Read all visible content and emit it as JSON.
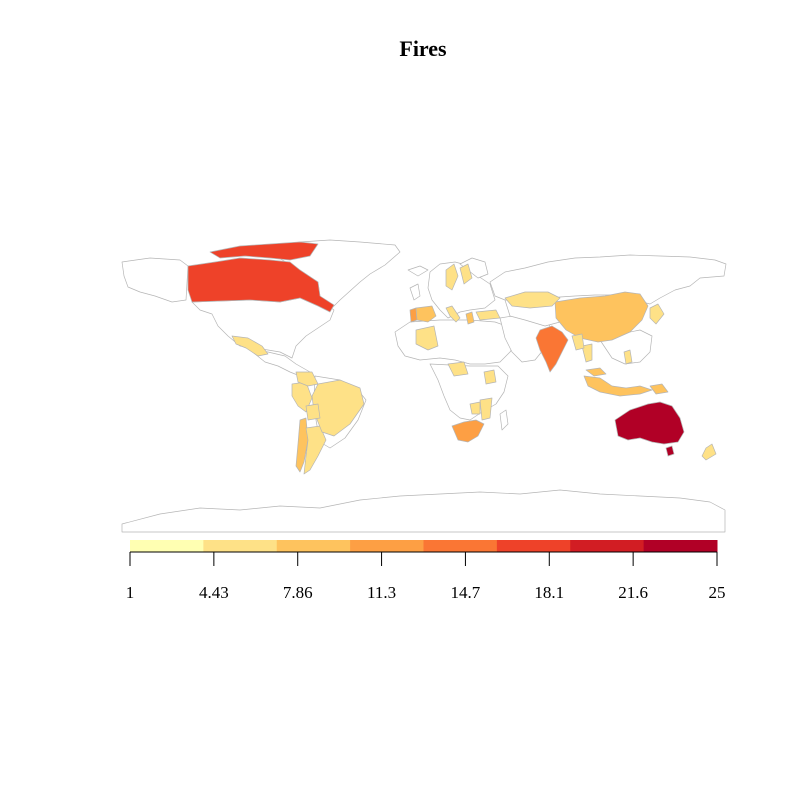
{
  "title": "Fires",
  "legend": {
    "breaks": [
      "1",
      "4.43",
      "7.86",
      "11.3",
      "14.7",
      "18.1",
      "21.6",
      "25"
    ],
    "colors": [
      "#FFFFB2",
      "#FEE187",
      "#FEC35E",
      "#FD9F44",
      "#FA7634",
      "#EE4229",
      "#D21D23",
      "#B10026"
    ]
  },
  "chart_data": {
    "type": "choropleth",
    "title": "Fires",
    "value_range": [
      1,
      25
    ],
    "class_breaks": [
      1,
      4.43,
      7.86,
      11.3,
      14.7,
      18.1,
      21.6,
      25
    ],
    "regions": [
      {
        "name": "Canada",
        "class": 5
      },
      {
        "name": "Australia",
        "class": 7
      },
      {
        "name": "India",
        "class": 4
      },
      {
        "name": "South Africa",
        "class": 3
      },
      {
        "name": "Portugal",
        "class": 3
      },
      {
        "name": "Spain",
        "class": 2
      },
      {
        "name": "China",
        "class": 2
      },
      {
        "name": "Chile",
        "class": 2
      },
      {
        "name": "Argentina",
        "class": 1
      },
      {
        "name": "Indonesia",
        "class": 2
      },
      {
        "name": "Brazil",
        "class": 1
      },
      {
        "name": "Peru",
        "class": 1
      },
      {
        "name": "Colombia",
        "class": 1
      },
      {
        "name": "Mexico",
        "class": 1
      },
      {
        "name": "Kazakhstan",
        "class": 1
      },
      {
        "name": "Greece",
        "class": 2
      },
      {
        "name": "Italy",
        "class": 1
      },
      {
        "name": "Sweden",
        "class": 1
      },
      {
        "name": "Finland",
        "class": 1
      },
      {
        "name": "Algeria",
        "class": 1
      },
      {
        "name": "Nigeria",
        "class": 1
      },
      {
        "name": "Kenya",
        "class": 1
      },
      {
        "name": "Mozambique",
        "class": 1
      },
      {
        "name": "Thailand",
        "class": 1
      },
      {
        "name": "Myanmar",
        "class": 1
      },
      {
        "name": "Japan",
        "class": 1
      },
      {
        "name": "New Zealand",
        "class": 1
      },
      {
        "name": "Papua New Guinea",
        "class": 2
      },
      {
        "name": "Turkey",
        "class": 1
      },
      {
        "name": "Malaysia",
        "class": 2
      },
      {
        "name": "Philippines",
        "class": 1
      },
      {
        "name": "Bolivia",
        "class": 1
      },
      {
        "name": "Zimbabwe",
        "class": 1
      }
    ]
  }
}
